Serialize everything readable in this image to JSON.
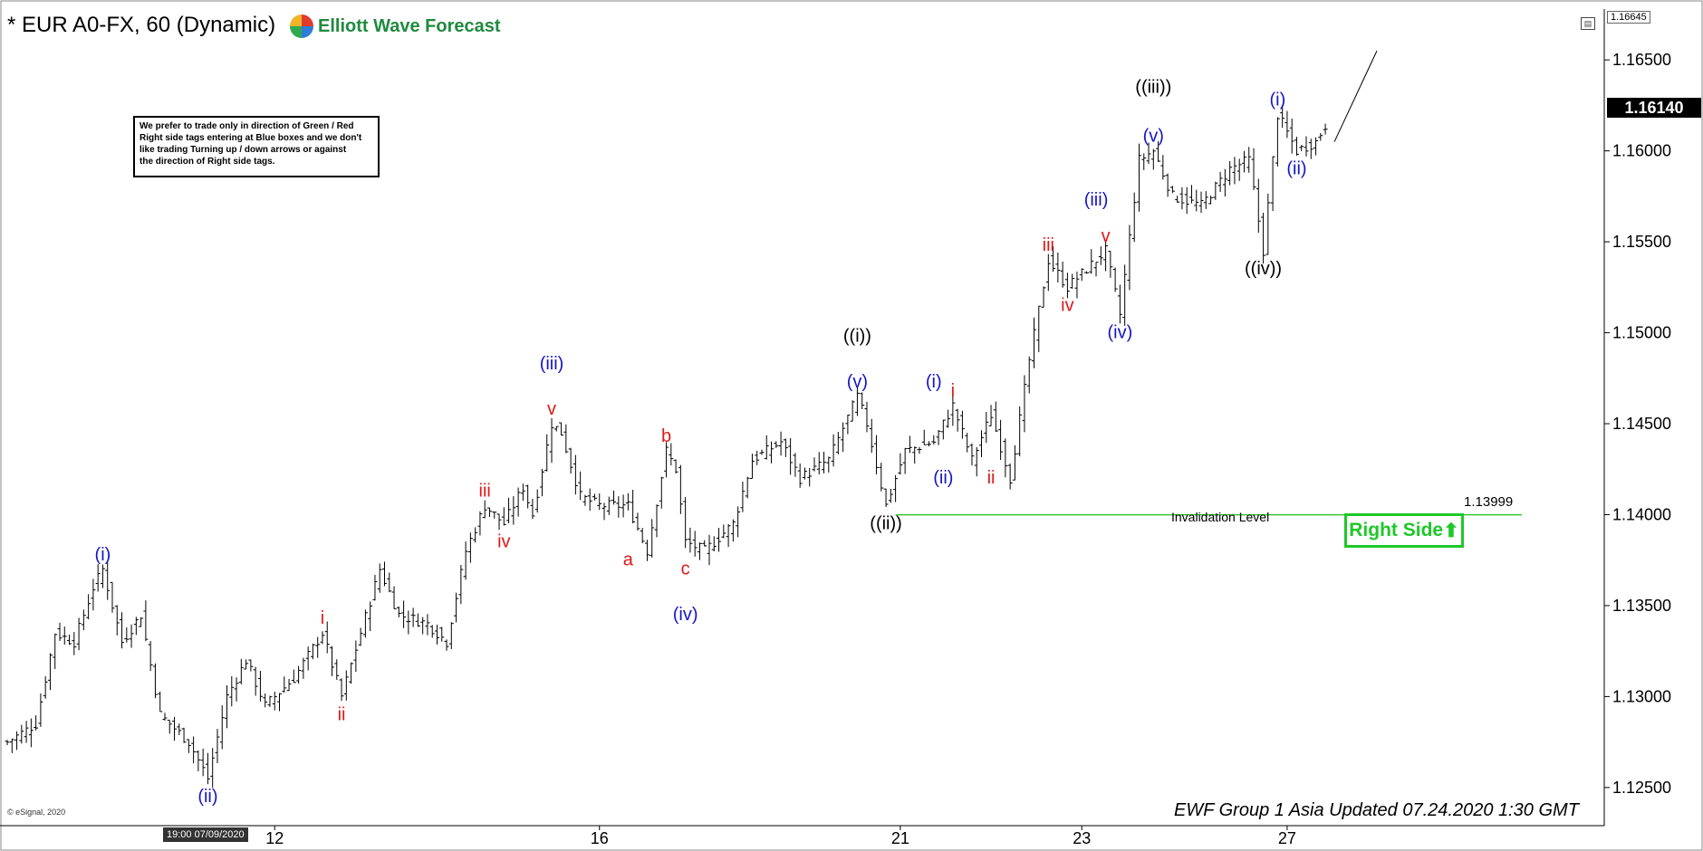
{
  "header": {
    "title": "* EUR A0-FX, 60 (Dynamic)",
    "brand": "Elliott Wave Forecast"
  },
  "note": {
    "lines": [
      "We prefer to trade only in direction of Green / Red",
      "Right side tags entering at Blue boxes and we don't",
      "like trading Turning up / down arrows or against",
      "the direction of Right side tags."
    ]
  },
  "footer": {
    "updated": "EWF Group 1 Asia Updated 07.24.2020 1:30 GMT",
    "copyright": "© eSignal, 2020",
    "date_box": "19:00 07/09/2020"
  },
  "badges": {
    "right_side": "Right Side",
    "current_price": "1.16140",
    "top_price": "1.16645",
    "invalidation_label": "Invalidation Level",
    "invalidation_price": "1.13999"
  },
  "colors": {
    "blue": "#1515c8",
    "red": "#e01818",
    "green": "#1ec828",
    "invalidation": "#36c436"
  },
  "chart_data": {
    "type": "ohlc-bar",
    "title": "* EUR A0-FX, 60 (Dynamic)",
    "y_ticks": [
      "1.12500",
      "1.13000",
      "1.13500",
      "1.14000",
      "1.14500",
      "1.15000",
      "1.15500",
      "1.16000",
      "1.16500"
    ],
    "ylim": [
      1.1235,
      1.1668
    ],
    "x_ticks": [
      "12",
      "16",
      "21",
      "23",
      "27"
    ],
    "invalidation_level": 1.13999,
    "price_path": [
      {
        "i": 0,
        "p": 1.1275
      },
      {
        "i": 6,
        "p": 1.1285
      },
      {
        "i": 10,
        "p": 1.1335
      },
      {
        "i": 14,
        "p": 1.133
      },
      {
        "i": 18,
        "p": 1.136
      },
      {
        "i": 20,
        "p": 1.137
      },
      {
        "i": 24,
        "p": 1.133
      },
      {
        "i": 28,
        "p": 1.1345
      },
      {
        "i": 32,
        "p": 1.129
      },
      {
        "i": 38,
        "p": 1.1275
      },
      {
        "i": 42,
        "p": 1.1255
      },
      {
        "i": 46,
        "p": 1.13
      },
      {
        "i": 50,
        "p": 1.132
      },
      {
        "i": 54,
        "p": 1.1295
      },
      {
        "i": 60,
        "p": 1.131
      },
      {
        "i": 66,
        "p": 1.1335
      },
      {
        "i": 70,
        "p": 1.13
      },
      {
        "i": 74,
        "p": 1.1335
      },
      {
        "i": 78,
        "p": 1.137
      },
      {
        "i": 82,
        "p": 1.1345
      },
      {
        "i": 88,
        "p": 1.134
      },
      {
        "i": 92,
        "p": 1.133
      },
      {
        "i": 96,
        "p": 1.138
      },
      {
        "i": 100,
        "p": 1.1405
      },
      {
        "i": 104,
        "p": 1.1395
      },
      {
        "i": 108,
        "p": 1.1415
      },
      {
        "i": 110,
        "p": 1.14
      },
      {
        "i": 114,
        "p": 1.145
      },
      {
        "i": 116,
        "p": 1.1445
      },
      {
        "i": 120,
        "p": 1.141
      },
      {
        "i": 124,
        "p": 1.1405
      },
      {
        "i": 130,
        "p": 1.1405
      },
      {
        "i": 134,
        "p": 1.138
      },
      {
        "i": 138,
        "p": 1.1435
      },
      {
        "i": 140,
        "p": 1.1425
      },
      {
        "i": 142,
        "p": 1.1385
      },
      {
        "i": 146,
        "p": 1.138
      },
      {
        "i": 152,
        "p": 1.1395
      },
      {
        "i": 156,
        "p": 1.143
      },
      {
        "i": 162,
        "p": 1.144
      },
      {
        "i": 166,
        "p": 1.142
      },
      {
        "i": 172,
        "p": 1.143
      },
      {
        "i": 178,
        "p": 1.1465
      },
      {
        "i": 180,
        "p": 1.145
      },
      {
        "i": 184,
        "p": 1.1405
      },
      {
        "i": 188,
        "p": 1.1435
      },
      {
        "i": 194,
        "p": 1.144
      },
      {
        "i": 198,
        "p": 1.146
      },
      {
        "i": 202,
        "p": 1.143
      },
      {
        "i": 206,
        "p": 1.1455
      },
      {
        "i": 210,
        "p": 1.142
      },
      {
        "i": 214,
        "p": 1.1485
      },
      {
        "i": 218,
        "p": 1.154
      },
      {
        "i": 222,
        "p": 1.1525
      },
      {
        "i": 226,
        "p": 1.1535
      },
      {
        "i": 230,
        "p": 1.1545
      },
      {
        "i": 233,
        "p": 1.151
      },
      {
        "i": 237,
        "p": 1.1595
      },
      {
        "i": 240,
        "p": 1.16
      },
      {
        "i": 244,
        "p": 1.1575
      },
      {
        "i": 250,
        "p": 1.157
      },
      {
        "i": 256,
        "p": 1.159
      },
      {
        "i": 260,
        "p": 1.1595
      },
      {
        "i": 263,
        "p": 1.1545
      },
      {
        "i": 266,
        "p": 1.162
      },
      {
        "i": 270,
        "p": 1.16
      },
      {
        "i": 274,
        "p": 1.1605
      },
      {
        "i": 276,
        "p": 1.1614
      }
    ],
    "projection": [
      [
        276,
        1.1605
      ],
      [
        283,
        1.1655
      ]
    ],
    "wave_labels": [
      {
        "text": "(i)",
        "i": 20,
        "p": 1.137,
        "pos": "above",
        "color": "blue"
      },
      {
        "text": "(ii)",
        "i": 42,
        "p": 1.1255,
        "pos": "below",
        "color": "blue"
      },
      {
        "text": "i",
        "i": 66,
        "p": 1.1335,
        "pos": "above",
        "color": "red"
      },
      {
        "text": "ii",
        "i": 70,
        "p": 1.13,
        "pos": "below",
        "color": "red"
      },
      {
        "text": "iii",
        "i": 100,
        "p": 1.1405,
        "pos": "above",
        "color": "red"
      },
      {
        "text": "iv",
        "i": 104,
        "p": 1.1395,
        "pos": "below",
        "color": "red"
      },
      {
        "text": "(iii)",
        "i": 114,
        "p": 1.1475,
        "pos": "above",
        "color": "blue"
      },
      {
        "text": "v",
        "i": 114,
        "p": 1.145,
        "pos": "above",
        "color": "red"
      },
      {
        "text": "a",
        "i": 130,
        "p": 1.1385,
        "pos": "below",
        "color": "red"
      },
      {
        "text": "b",
        "i": 138,
        "p": 1.1435,
        "pos": "above",
        "color": "red"
      },
      {
        "text": "c",
        "i": 142,
        "p": 1.138,
        "pos": "below",
        "color": "red"
      },
      {
        "text": "(iv)",
        "i": 142,
        "p": 1.1355,
        "pos": "below",
        "color": "blue"
      },
      {
        "text": "((i))",
        "i": 178,
        "p": 1.149,
        "pos": "above",
        "color": "black"
      },
      {
        "text": "(v)",
        "i": 178,
        "p": 1.1465,
        "pos": "above",
        "color": "blue"
      },
      {
        "text": "((ii))",
        "i": 184,
        "p": 1.1405,
        "pos": "below",
        "color": "black"
      },
      {
        "text": "(i)",
        "i": 194,
        "p": 1.1465,
        "pos": "above",
        "color": "blue"
      },
      {
        "text": "i",
        "i": 198,
        "p": 1.146,
        "pos": "above",
        "color": "red"
      },
      {
        "text": "(ii)",
        "i": 196,
        "p": 1.143,
        "pos": "below",
        "color": "blue"
      },
      {
        "text": "ii",
        "i": 206,
        "p": 1.143,
        "pos": "below",
        "color": "red"
      },
      {
        "text": "iii",
        "i": 218,
        "p": 1.154,
        "pos": "above",
        "color": "red"
      },
      {
        "text": "iv",
        "i": 222,
        "p": 1.1525,
        "pos": "below",
        "color": "red"
      },
      {
        "text": "(iii)",
        "i": 228,
        "p": 1.1565,
        "pos": "above",
        "color": "blue"
      },
      {
        "text": "v",
        "i": 230,
        "p": 1.1545,
        "pos": "above",
        "color": "red"
      },
      {
        "text": "(iv)",
        "i": 233,
        "p": 1.151,
        "pos": "below",
        "color": "blue"
      },
      {
        "text": "((iii))",
        "i": 240,
        "p": 1.1627,
        "pos": "above",
        "color": "black"
      },
      {
        "text": "(v)",
        "i": 240,
        "p": 1.16,
        "pos": "above",
        "color": "blue"
      },
      {
        "text": "((iv))",
        "i": 263,
        "p": 1.1545,
        "pos": "below",
        "color": "black"
      },
      {
        "text": "(i)",
        "i": 266,
        "p": 1.162,
        "pos": "above",
        "color": "blue"
      },
      {
        "text": "(ii)",
        "i": 270,
        "p": 1.16,
        "pos": "below",
        "color": "blue"
      }
    ]
  }
}
